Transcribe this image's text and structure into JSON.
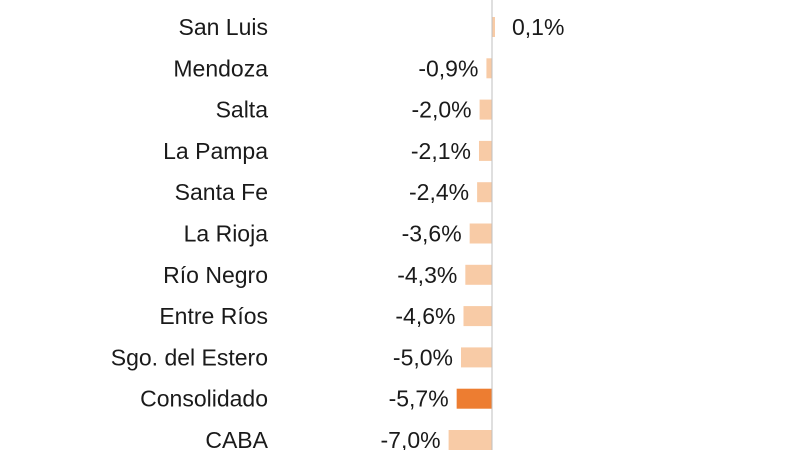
{
  "chart_data": {
    "type": "bar",
    "orientation": "horizontal",
    "categories": [
      "San Luis",
      "Mendoza",
      "Salta",
      "La Pampa",
      "Santa Fe",
      "La Rioja",
      "Río Negro",
      "Entre Ríos",
      "Sgo. del Estero",
      "Consolidado",
      "CABA"
    ],
    "values": [
      0.1,
      -0.9,
      -2.0,
      -2.1,
      -2.4,
      -3.6,
      -4.3,
      -4.6,
      -5.0,
      -5.7,
      -7.0
    ],
    "data_labels": [
      "0,1%",
      "-0,9%",
      "-2,0%",
      "-2,1%",
      "-2,4%",
      "-3,6%",
      "-4,3%",
      "-4,6%",
      "-5,0%",
      "-5,7%",
      "-7,0%"
    ],
    "unit": "%",
    "highlight_category": "Consolidado",
    "colors": {
      "bar": "#f8cba6",
      "highlight": "#ed7d31",
      "axis": "#bfbfbf"
    },
    "grid": false,
    "legend": "none"
  }
}
